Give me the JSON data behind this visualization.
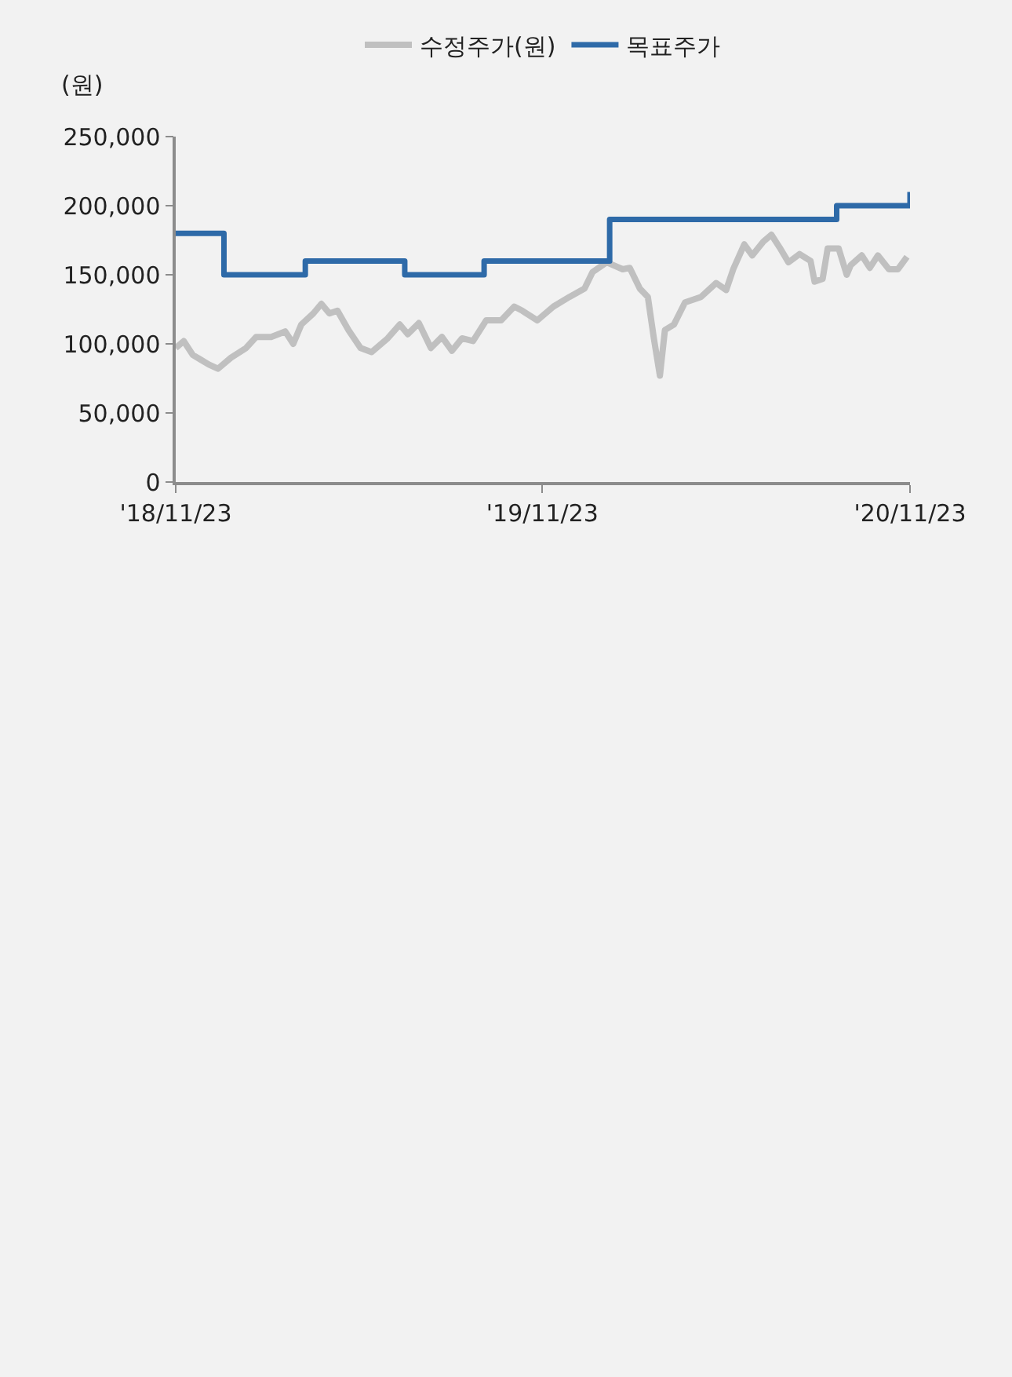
{
  "chart_data": {
    "type": "line",
    "ylabel": "(원)",
    "legend": "top",
    "grid": false,
    "xlim": [
      "2018-11-23",
      "2020-11-23"
    ],
    "xticks": [
      {
        "value": "2018-11-23",
        "label": "'18/11/23"
      },
      {
        "value": "2019-11-23",
        "label": "'19/11/23"
      },
      {
        "value": "2020-11-23",
        "label": "'20/11/23"
      }
    ],
    "ylim": [
      0,
      250000
    ],
    "yticks": [
      {
        "value": 0,
        "label": "0"
      },
      {
        "value": 50000,
        "label": "50,000"
      },
      {
        "value": 100000,
        "label": "100,000"
      },
      {
        "value": 150000,
        "label": "150,000"
      },
      {
        "value": 200000,
        "label": "200,000"
      },
      {
        "value": 250000,
        "label": "250,000"
      }
    ],
    "series": [
      {
        "name": "수정주가(원)",
        "color": "#c0c0c0",
        "x": [
          "2018-11-23",
          "2018-12-01",
          "2018-12-10",
          "2018-12-26",
          "2019-01-04",
          "2019-01-17",
          "2019-02-01",
          "2019-02-11",
          "2019-02-26",
          "2019-03-12",
          "2019-03-20",
          "2019-03-28",
          "2019-04-09",
          "2019-04-17",
          "2019-04-25",
          "2019-05-03",
          "2019-05-14",
          "2019-05-26",
          "2019-06-06",
          "2019-06-22",
          "2019-07-04",
          "2019-07-12",
          "2019-07-23",
          "2019-08-04",
          "2019-08-15",
          "2019-08-25",
          "2019-09-04",
          "2019-09-15",
          "2019-09-28",
          "2019-10-13",
          "2019-10-26",
          "2019-11-03",
          "2019-11-18",
          "2019-12-04",
          "2019-12-20",
          "2020-01-04",
          "2020-01-12",
          "2020-01-26",
          "2020-02-11",
          "2020-02-18",
          "2020-02-28",
          "2020-03-07",
          "2020-03-13",
          "2020-03-19",
          "2020-03-24",
          "2020-04-02",
          "2020-04-13",
          "2020-04-29",
          "2020-05-14",
          "2020-05-24",
          "2020-05-31",
          "2020-06-11",
          "2020-06-19",
          "2020-06-30",
          "2020-07-08",
          "2020-07-16",
          "2020-07-25",
          "2020-08-05",
          "2020-08-16",
          "2020-08-20",
          "2020-08-28",
          "2020-09-02",
          "2020-09-13",
          "2020-09-21",
          "2020-09-25",
          "2020-10-06",
          "2020-10-14",
          "2020-10-22",
          "2020-11-02",
          "2020-11-11",
          "2020-11-20"
        ],
        "values": [
          97000,
          102000,
          92000,
          85000,
          82000,
          90000,
          97000,
          105000,
          105000,
          109000,
          100000,
          114000,
          122000,
          129000,
          122000,
          124000,
          110000,
          97000,
          94000,
          104000,
          114000,
          107000,
          115000,
          97000,
          105000,
          95000,
          104000,
          102000,
          117000,
          117000,
          127000,
          124000,
          117000,
          127000,
          134000,
          140000,
          152000,
          159000,
          154000,
          155000,
          140000,
          134000,
          104000,
          77000,
          110000,
          114000,
          130000,
          134000,
          144000,
          139000,
          154000,
          172000,
          164000,
          174000,
          179000,
          170000,
          159000,
          165000,
          160000,
          145000,
          147000,
          169000,
          169000,
          150000,
          157000,
          164000,
          155000,
          164000,
          154000,
          154000,
          163000
        ]
      },
      {
        "name": "목표주가",
        "type": "step",
        "color": "#2e6aa8",
        "x": [
          "2018-11-23",
          "2019-01-10",
          "2019-04-01",
          "2019-07-09",
          "2019-09-26",
          "2020-01-29",
          "2020-09-11",
          "2020-11-23"
        ],
        "values": [
          180000,
          150000,
          160000,
          150000,
          160000,
          190000,
          200000,
          210000
        ]
      }
    ]
  }
}
